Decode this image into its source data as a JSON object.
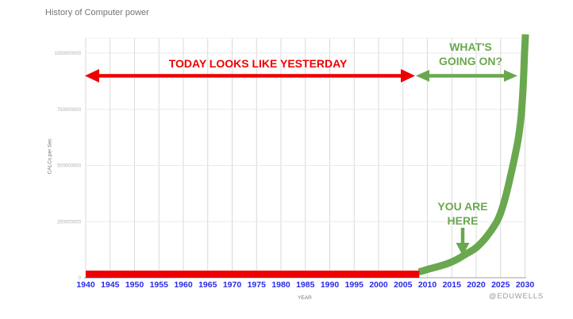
{
  "page": {
    "title": "History of Computer power",
    "credit": "@EDUWELLS"
  },
  "chart_data": {
    "type": "line",
    "title": "History of Computer power",
    "xlabel": "YEAR",
    "ylabel": "CALCs per Sec",
    "xlim": [
      1940,
      2030
    ],
    "ylim": [
      0,
      1078000000
    ],
    "grid": true,
    "legend": "none",
    "x_tick_color": "#2929e8",
    "y_tick_color": "#b0b0b0",
    "x_ticks": [
      {
        "value": 1940,
        "label": "1940"
      },
      {
        "value": 1945,
        "label": "1945"
      },
      {
        "value": 1950,
        "label": "1950"
      },
      {
        "value": 1955,
        "label": "1955"
      },
      {
        "value": 1960,
        "label": "1960"
      },
      {
        "value": 1965,
        "label": "1965"
      },
      {
        "value": 1970,
        "label": "1970"
      },
      {
        "value": 1975,
        "label": "1975"
      },
      {
        "value": 1980,
        "label": "1980"
      },
      {
        "value": 1985,
        "label": "1985"
      },
      {
        "value": 1990,
        "label": "1990"
      },
      {
        "value": 1995,
        "label": "1995"
      },
      {
        "value": 2000,
        "label": "2000"
      },
      {
        "value": 2005,
        "label": "2005"
      },
      {
        "value": 2010,
        "label": "2010"
      },
      {
        "value": 2015,
        "label": "2015"
      },
      {
        "value": 2020,
        "label": "2020"
      },
      {
        "value": 2025,
        "label": "2025"
      },
      {
        "value": 2030,
        "label": "2030"
      }
    ],
    "y_ticks": [
      {
        "value": 0,
        "label": "0"
      },
      {
        "value": 250000000,
        "label": "250000000"
      },
      {
        "value": 500000000,
        "label": "500000000"
      },
      {
        "value": 750000000,
        "label": "750000000"
      },
      {
        "value": 1000000000,
        "label": "1000000000"
      }
    ],
    "series": [
      {
        "name": "computer power (CALCs per Sec)",
        "color": "#6aa84f",
        "underline_color": "#3d78d8",
        "points": [
          [
            1940,
            2000000
          ],
          [
            1955,
            3000000
          ],
          [
            1970,
            5000000
          ],
          [
            1985,
            7000000
          ],
          [
            1997,
            10000000
          ],
          [
            2004,
            13000000
          ],
          [
            2008.3,
            17000000
          ],
          [
            2010,
            28000000
          ],
          [
            2012,
            40000000
          ],
          [
            2014,
            53000000
          ],
          [
            2016,
            72000000
          ],
          [
            2018,
            98000000
          ],
          [
            2020,
            125000000
          ],
          [
            2022,
            170000000
          ],
          [
            2024,
            232000000
          ],
          [
            2025,
            280000000
          ],
          [
            2026,
            350000000
          ],
          [
            2027,
            440000000
          ],
          [
            2028,
            540000000
          ],
          [
            2028.7,
            620000000
          ],
          [
            2029.2,
            710000000
          ],
          [
            2029.6,
            830000000
          ],
          [
            2029.9,
            990000000
          ],
          [
            2030.1,
            1075000000
          ]
        ]
      }
    ],
    "segments": {
      "red_era_years": [
        1940,
        2008.35
      ],
      "red_color": "#ee0000",
      "green_from_year": 2008.3,
      "green_color": "#6aa84f"
    },
    "annotations": {
      "today": {
        "label": "TODAY LOOKS LIKE YESTERDAY",
        "color": "#ee0000",
        "arrow_span_years": [
          1940,
          2007.5
        ]
      },
      "whats": {
        "line1": "WHAT'S",
        "line2": "GOING ON?",
        "color": "#6aa84f",
        "arrow_span_years": [
          2007.8,
          2028.6
        ]
      },
      "here": {
        "line1": "YOU ARE",
        "line2": "HERE",
        "color": "#6aa84f",
        "arrow_points_at_year": 2017
      }
    }
  }
}
